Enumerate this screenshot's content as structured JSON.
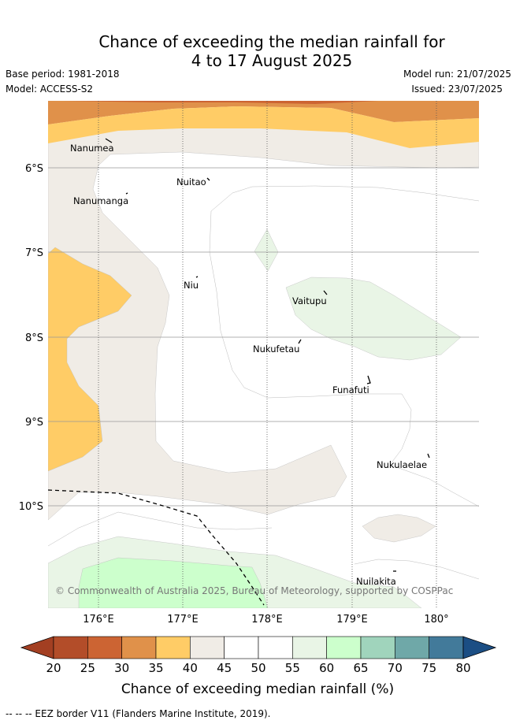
{
  "header": {
    "title_line1": "Chance of exceeding the median rainfall for",
    "title_line2": "4 to 17 August 2025",
    "base_period": "Base period: 1981-2018",
    "model": "Model: ACCESS-S2",
    "model_run": "Model run: 21/07/2025",
    "issued": "Issued: 23/07/2025"
  },
  "map": {
    "lon_ticks": [
      "176°E",
      "177°E",
      "178°E",
      "179°E",
      "180°"
    ],
    "lat_ticks": [
      "6°S",
      "7°S",
      "8°S",
      "9°S",
      "10°S"
    ],
    "islands": [
      "Nanumea",
      "Nuitao",
      "Nanumanga",
      "Niu",
      "Vaitupu",
      "Nukufetau",
      "Funafuti",
      "Nukulaelae",
      "Nuilakita"
    ],
    "copyright": "© Commonwealth of Australia 2025, Bureau of Meteorology, supported by COSPPac",
    "eez_note": "-- -- -- EEZ border V11 (Flanders Marine Institute, 2019)."
  },
  "colorbar": {
    "labels": [
      "20",
      "25",
      "30",
      "35",
      "40",
      "45",
      "50",
      "55",
      "60",
      "65",
      "70",
      "75",
      "80"
    ],
    "title": "Chance of exceeding median rainfall (%)",
    "colors": [
      "#b34d29",
      "#cc6433",
      "#e0914a",
      "#ffcc66",
      "#f0ece6",
      "#ffffff",
      "#ffffff",
      "#e9f5e6",
      "#ccffcc",
      "#a0d4bc",
      "#6fa8a8",
      "#427a9a",
      "#1b4e84"
    ],
    "low_extend_color": "#a33f22",
    "high_extend_color": "#1b4e84"
  }
}
